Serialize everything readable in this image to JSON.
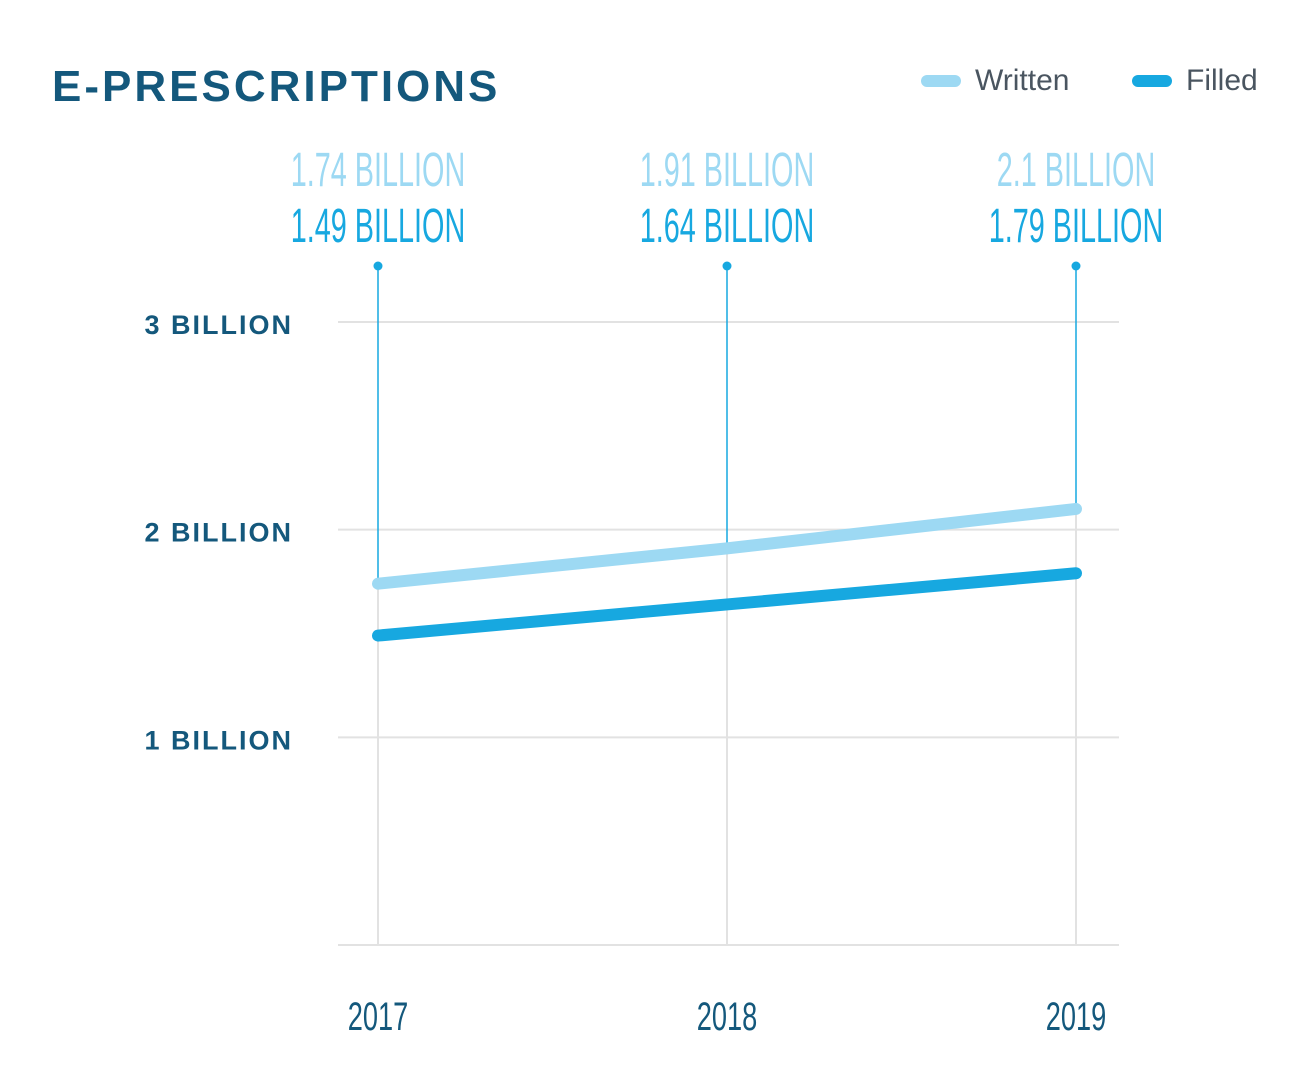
{
  "chart_data": {
    "type": "line",
    "title": "E-PRESCRIPTIONS",
    "categories": [
      "2017",
      "2018",
      "2019"
    ],
    "series": [
      {
        "name": "Written",
        "values": [
          1.74,
          1.91,
          2.1
        ],
        "color": "#9dd9f3",
        "labels": [
          "1.74 BILLION",
          "1.91 BILLION",
          "2.1 BILLION"
        ]
      },
      {
        "name": "Filled",
        "values": [
          1.49,
          1.64,
          1.79
        ],
        "color": "#17a8e0",
        "labels": [
          "1.49 BILLION",
          "1.64 BILLION",
          "1.79 BILLION"
        ]
      }
    ],
    "yticks": [
      {
        "value": 1,
        "label": "1 BILLION"
      },
      {
        "value": 2,
        "label": "2 BILLION"
      },
      {
        "value": 3,
        "label": "3 BILLION"
      }
    ],
    "ylim": [
      0,
      3
    ],
    "grid": true,
    "legend": "top-right",
    "colors": {
      "title": "#14587c",
      "grid": "#e2e2e2",
      "axis_text": "#14587c"
    }
  }
}
